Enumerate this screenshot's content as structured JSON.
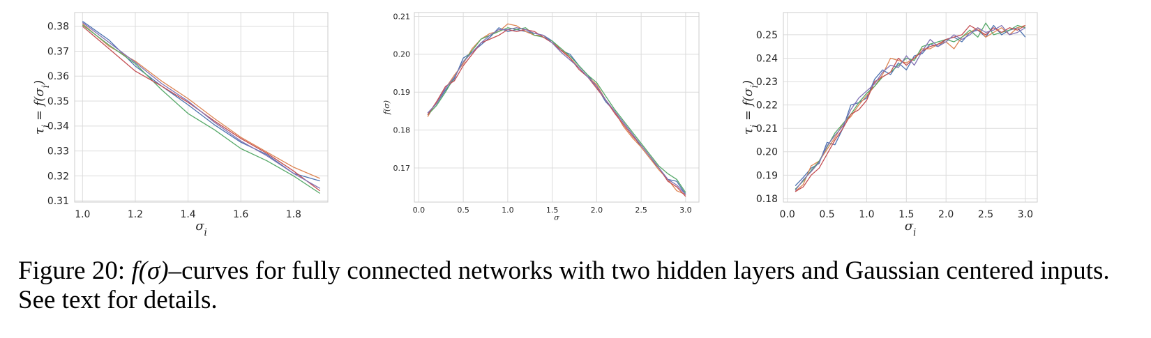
{
  "caption": {
    "label": "Figure 20:",
    "math": "f(σ)",
    "text": "–curves for fully connected networks with two hidden layers and Gaussian centered inputs. See text for details."
  },
  "colors": [
    "#4c72b0",
    "#dd8452",
    "#55a868",
    "#c44e52",
    "#8172b3"
  ],
  "chart_data": [
    {
      "type": "line",
      "title": "",
      "xlabel": "σ_i",
      "ylabel": "τ_i = f(σ_i)",
      "xlim": [
        0.97,
        1.93
      ],
      "ylim": [
        0.3095,
        0.3855
      ],
      "xticks": [
        1.0,
        1.2,
        1.4,
        1.6,
        1.8
      ],
      "xtick_labels": [
        "1.0",
        "1.2",
        "1.4",
        "1.6",
        "1.8"
      ],
      "yticks": [
        0.31,
        0.32,
        0.33,
        0.34,
        0.35,
        0.36,
        0.37,
        0.38
      ],
      "ytick_labels": [
        "0.31",
        "0.32",
        "0.33",
        "0.34",
        "0.35",
        "0.36",
        "0.37",
        "0.38"
      ],
      "grid": true,
      "x": [
        1.0,
        1.1,
        1.2,
        1.3,
        1.4,
        1.5,
        1.6,
        1.7,
        1.8,
        1.9
      ],
      "series": [
        {
          "color": "#4c72b0",
          "values": [
            0.382,
            0.3745,
            0.364,
            0.356,
            0.3485,
            0.3405,
            0.3335,
            0.3285,
            0.321,
            0.318
          ]
        },
        {
          "color": "#dd8452",
          "values": [
            0.381,
            0.372,
            0.366,
            0.358,
            0.351,
            0.343,
            0.3355,
            0.3295,
            0.3235,
            0.319
          ]
        },
        {
          "color": "#55a868",
          "values": [
            0.3805,
            0.3725,
            0.365,
            0.3545,
            0.345,
            0.3385,
            0.331,
            0.326,
            0.32,
            0.313
          ]
        },
        {
          "color": "#c44e52",
          "values": [
            0.38,
            0.371,
            0.362,
            0.356,
            0.3495,
            0.342,
            0.335,
            0.329,
            0.322,
            0.314
          ]
        },
        {
          "color": "#8172b3",
          "values": [
            0.3815,
            0.3735,
            0.3655,
            0.357,
            0.35,
            0.3415,
            0.334,
            0.328,
            0.321,
            0.315
          ]
        }
      ]
    },
    {
      "type": "line",
      "title": "",
      "xlabel": "σ",
      "ylabel": "f(σ)",
      "xlim": [
        -0.05,
        3.15
      ],
      "ylim": [
        0.161,
        0.211
      ],
      "xticks": [
        0.0,
        0.5,
        1.0,
        1.5,
        2.0,
        2.5,
        3.0
      ],
      "xtick_labels": [
        "0.0",
        "0.5",
        "1.0",
        "1.5",
        "2.0",
        "2.5",
        "3.0"
      ],
      "yticks": [
        0.17,
        0.18,
        0.19,
        0.2,
        0.21
      ],
      "ytick_labels": [
        "0.17",
        "0.18",
        "0.19",
        "0.20",
        "0.21"
      ],
      "grid": true,
      "x": [
        0.1,
        0.2,
        0.3,
        0.4,
        0.5,
        0.6,
        0.7,
        0.8,
        0.9,
        1.0,
        1.1,
        1.2,
        1.3,
        1.4,
        1.5,
        1.6,
        1.7,
        1.8,
        1.9,
        2.0,
        2.1,
        2.2,
        2.3,
        2.4,
        2.5,
        2.6,
        2.7,
        2.8,
        2.9,
        3.0
      ],
      "series": [
        {
          "color": "#4c72b0",
          "values": [
            0.1845,
            0.187,
            0.1905,
            0.1935,
            0.199,
            0.2005,
            0.2025,
            0.2045,
            0.207,
            0.206,
            0.2065,
            0.206,
            0.2055,
            0.205,
            0.2035,
            0.201,
            0.2,
            0.197,
            0.1945,
            0.1915,
            0.1875,
            0.185,
            0.182,
            0.179,
            0.1755,
            0.1725,
            0.17,
            0.167,
            0.1665,
            0.163
          ]
        },
        {
          "color": "#dd8452",
          "values": [
            0.1835,
            0.1875,
            0.191,
            0.1945,
            0.1975,
            0.2015,
            0.204,
            0.2055,
            0.206,
            0.208,
            0.2075,
            0.206,
            0.205,
            0.205,
            0.203,
            0.2015,
            0.199,
            0.1965,
            0.194,
            0.192,
            0.188,
            0.185,
            0.181,
            0.178,
            0.1755,
            0.1725,
            0.1695,
            0.167,
            0.164,
            0.163
          ]
        },
        {
          "color": "#55a868",
          "values": [
            0.184,
            0.1865,
            0.19,
            0.194,
            0.198,
            0.201,
            0.204,
            0.205,
            0.206,
            0.207,
            0.2065,
            0.207,
            0.205,
            0.2045,
            0.2035,
            0.2015,
            0.1995,
            0.197,
            0.1945,
            0.1925,
            0.189,
            0.1855,
            0.1825,
            0.1795,
            0.1765,
            0.1735,
            0.1705,
            0.1685,
            0.167,
            0.1635
          ]
        },
        {
          "color": "#c44e52",
          "values": [
            0.184,
            0.1875,
            0.1915,
            0.193,
            0.197,
            0.2,
            0.203,
            0.204,
            0.205,
            0.2065,
            0.206,
            0.2065,
            0.206,
            0.2045,
            0.203,
            0.201,
            0.199,
            0.196,
            0.194,
            0.191,
            0.188,
            0.1845,
            0.1815,
            0.1785,
            0.176,
            0.173,
            0.17,
            0.1665,
            0.165,
            0.1625
          ]
        },
        {
          "color": "#8172b3",
          "values": [
            0.1845,
            0.187,
            0.191,
            0.194,
            0.198,
            0.2005,
            0.203,
            0.205,
            0.2065,
            0.2065,
            0.207,
            0.2065,
            0.2055,
            0.205,
            0.203,
            0.2005,
            0.1985,
            0.1965,
            0.194,
            0.1915,
            0.188,
            0.185,
            0.182,
            0.179,
            0.176,
            0.173,
            0.17,
            0.167,
            0.1655,
            0.163
          ]
        }
      ]
    },
    {
      "type": "line",
      "title": "",
      "xlabel": "σ_i",
      "ylabel": "τ_i = f(σ_i)",
      "xlim": [
        -0.05,
        3.15
      ],
      "ylim": [
        0.1785,
        0.2595
      ],
      "xticks": [
        0.0,
        0.5,
        1.0,
        1.5,
        2.0,
        2.5,
        3.0
      ],
      "xtick_labels": [
        "0.0",
        "0.5",
        "1.0",
        "1.5",
        "2.0",
        "2.5",
        "3.0"
      ],
      "yticks": [
        0.18,
        0.19,
        0.2,
        0.21,
        0.22,
        0.23,
        0.24,
        0.25
      ],
      "ytick_labels": [
        "0.18",
        "0.19",
        "0.20",
        "0.21",
        "0.22",
        "0.23",
        "0.24",
        "0.25"
      ],
      "grid": true,
      "x": [
        0.1,
        0.2,
        0.3,
        0.4,
        0.5,
        0.6,
        0.7,
        0.8,
        0.9,
        1.0,
        1.1,
        1.2,
        1.3,
        1.4,
        1.5,
        1.6,
        1.7,
        1.8,
        1.9,
        2.0,
        2.1,
        2.2,
        2.3,
        2.4,
        2.5,
        2.6,
        2.7,
        2.8,
        2.9,
        3.0
      ],
      "series": [
        {
          "color": "#4c72b0",
          "values": [
            0.1855,
            0.189,
            0.193,
            0.195,
            0.204,
            0.203,
            0.21,
            0.22,
            0.221,
            0.223,
            0.231,
            0.235,
            0.233,
            0.238,
            0.235,
            0.241,
            0.242,
            0.246,
            0.245,
            0.248,
            0.249,
            0.247,
            0.251,
            0.252,
            0.249,
            0.254,
            0.25,
            0.252,
            0.253,
            0.249
          ]
        },
        {
          "color": "#dd8452",
          "values": [
            0.183,
            0.186,
            0.194,
            0.196,
            0.201,
            0.206,
            0.212,
            0.215,
            0.22,
            0.224,
            0.228,
            0.233,
            0.24,
            0.239,
            0.238,
            0.24,
            0.244,
            0.244,
            0.246,
            0.247,
            0.244,
            0.249,
            0.251,
            0.253,
            0.249,
            0.251,
            0.253,
            0.25,
            0.253,
            0.254
          ]
        },
        {
          "color": "#55a868",
          "values": [
            0.184,
            0.1875,
            0.192,
            0.196,
            0.202,
            0.208,
            0.212,
            0.216,
            0.221,
            0.225,
            0.228,
            0.232,
            0.234,
            0.237,
            0.24,
            0.239,
            0.245,
            0.246,
            0.247,
            0.248,
            0.247,
            0.249,
            0.252,
            0.249,
            0.255,
            0.25,
            0.251,
            0.252,
            0.254,
            0.253
          ]
        },
        {
          "color": "#c44e52",
          "values": [
            0.183,
            0.185,
            0.19,
            0.193,
            0.199,
            0.205,
            0.21,
            0.216,
            0.218,
            0.222,
            0.23,
            0.232,
            0.234,
            0.24,
            0.237,
            0.24,
            0.243,
            0.245,
            0.246,
            0.248,
            0.249,
            0.25,
            0.254,
            0.252,
            0.25,
            0.253,
            0.251,
            0.253,
            0.252,
            0.254
          ]
        },
        {
          "color": "#8172b3",
          "values": [
            0.1835,
            0.188,
            0.1915,
            0.1955,
            0.2025,
            0.207,
            0.211,
            0.218,
            0.223,
            0.226,
            0.229,
            0.234,
            0.237,
            0.236,
            0.241,
            0.237,
            0.243,
            0.248,
            0.245,
            0.247,
            0.25,
            0.248,
            0.25,
            0.253,
            0.251,
            0.252,
            0.254,
            0.25,
            0.251,
            0.253
          ]
        }
      ]
    }
  ]
}
